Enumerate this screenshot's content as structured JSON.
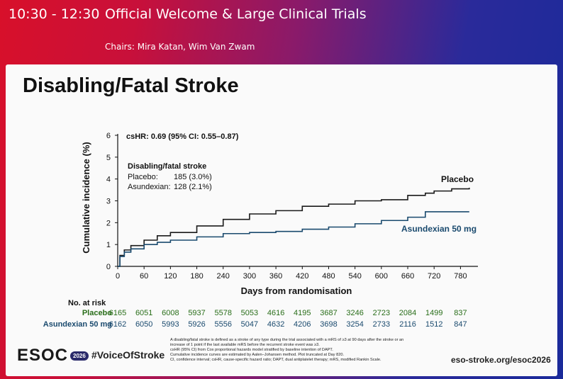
{
  "header": {
    "time": "10:30 - 12:30",
    "title": "Official Welcome & Large Clinical Trials",
    "chairs": "Chairs: Mira Katan, Wim Van Zwam"
  },
  "slide": {
    "title": "Disabling/Fatal Stroke",
    "hazard_ratio": "csHR: 0.69 (95% CI: 0.55–0.87)",
    "box": {
      "heading": "Disabling/fatal stroke",
      "rows": [
        {
          "name": "Placebo:",
          "value": "185 (3.0%)"
        },
        {
          "name": "Asundexian:",
          "value": "128 (2.1%)"
        }
      ]
    },
    "risk_table": {
      "heading": "No. at risk",
      "rows": [
        {
          "name": "Placebo",
          "color": "#2a6e1a",
          "values": [
            "6165",
            "6051",
            "6008",
            "5937",
            "5578",
            "5053",
            "4616",
            "4195",
            "3687",
            "3246",
            "2723",
            "2084",
            "1499",
            "837"
          ]
        },
        {
          "name": "Asundexian 50 mg",
          "color": "#1a4a6e",
          "values": [
            "6162",
            "6050",
            "5993",
            "5926",
            "5556",
            "5047",
            "4632",
            "4206",
            "3698",
            "3254",
            "2733",
            "2116",
            "1512",
            "847"
          ]
        }
      ]
    },
    "footnote": [
      "A disabling/fatal stroke is defined as a stroke of any type during the trial associated with a mRS of ≥3 at 90 days after the stroke or an",
      "increase of 1 point if the last available mRS before the recurrent stroke event was ≥3.",
      "csHR (95% CI) from Cox proportional hazards model stratified by baseline intention of DAPT.",
      "Cumulative incidence curves are estimated by Aalen–Johansen method. Plot truncated at Day 820.",
      "CI, confidence interval; csHR, cause-specific hazard ratio; DAPT, dual antiplatelet therapy; mRS, modified Rankin Scale."
    ],
    "logo": {
      "text": "ESOC",
      "year": "2026"
    },
    "hashtag": "#VoiceOfStroke",
    "website": "eso-stroke.org/esoc2026"
  },
  "chart_data": {
    "type": "line",
    "xlabel": "Days from randomisation",
    "ylabel": "Cumulative incidence (%)",
    "xlim": [
      0,
      810
    ],
    "ylim": [
      0,
      6
    ],
    "xticks": [
      0,
      60,
      120,
      180,
      240,
      300,
      360,
      420,
      480,
      540,
      600,
      660,
      720,
      780
    ],
    "yticks": [
      0,
      1,
      2,
      3,
      4,
      5,
      6
    ],
    "grid": false,
    "series": [
      {
        "name": "Placebo",
        "color": "#1a1a1a",
        "x": [
          0,
          5,
          15,
          30,
          60,
          90,
          120,
          180,
          240,
          300,
          360,
          420,
          480,
          540,
          600,
          660,
          700,
          720,
          760,
          790,
          800
        ],
        "y": [
          0,
          0.5,
          0.75,
          0.95,
          1.2,
          1.4,
          1.55,
          1.85,
          2.15,
          2.4,
          2.55,
          2.75,
          2.85,
          3.0,
          3.05,
          3.25,
          3.35,
          3.45,
          3.55,
          3.55,
          3.6
        ]
      },
      {
        "name": "Asundexian 50 mg",
        "color": "#1a4a6e",
        "x": [
          0,
          5,
          15,
          30,
          60,
          90,
          120,
          180,
          240,
          300,
          360,
          420,
          480,
          540,
          600,
          660,
          700,
          720,
          760,
          800
        ],
        "y": [
          0,
          0.45,
          0.65,
          0.8,
          1.0,
          1.1,
          1.2,
          1.35,
          1.5,
          1.55,
          1.6,
          1.7,
          1.8,
          1.95,
          2.1,
          2.25,
          2.5,
          2.5,
          2.5,
          2.5
        ]
      }
    ]
  }
}
